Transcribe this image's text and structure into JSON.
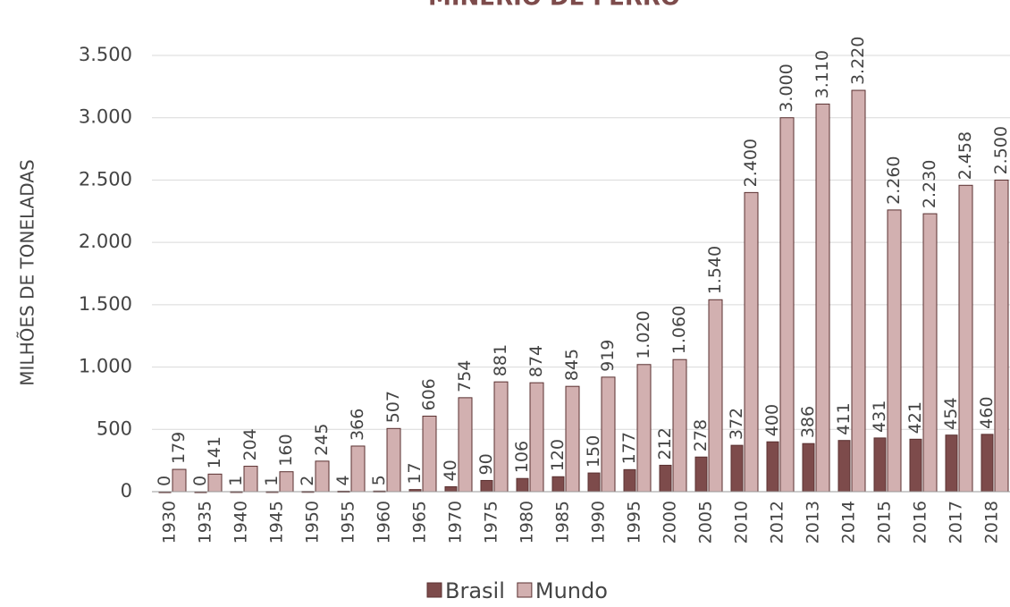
{
  "chart_data": {
    "type": "bar",
    "title": "MINÉRIO DE FERRO",
    "y_label": "MILHÕES DE TONELADAS",
    "categories": [
      "1930",
      "1935",
      "1940",
      "1945",
      "1950",
      "1955",
      "1960",
      "1965",
      "1970",
      "1975",
      "1980",
      "1985",
      "1990",
      "1995",
      "2000",
      "2005",
      "2010",
      "2012",
      "2013",
      "2014",
      "2015",
      "2016",
      "2017",
      "2018"
    ],
    "series": [
      {
        "name": "Brasil",
        "color": "#7d4b4b",
        "values": [
          0,
          0,
          1,
          1,
          2,
          4,
          5,
          17,
          40,
          90,
          106,
          120,
          150,
          177,
          212,
          278,
          372,
          400,
          386,
          411,
          431,
          421,
          454,
          460
        ]
      },
      {
        "name": "Mundo",
        "color": "#d2b0b0",
        "values": [
          179,
          141,
          204,
          160,
          245,
          366,
          507,
          606,
          754,
          881,
          874,
          845,
          919,
          1020,
          1060,
          1540,
          2400,
          3000,
          3110,
          3220,
          2260,
          2230,
          2458,
          2500
        ],
        "value_labels": [
          "179",
          "141",
          "204",
          "160",
          "245",
          "366",
          "507",
          "606",
          "754",
          "881",
          "874",
          "845",
          "919",
          "1.020",
          "1.060",
          "1.540",
          "2.400",
          "3.000",
          "3.110",
          "3.220",
          "2.260",
          "2.230",
          "2.458",
          "2.500"
        ]
      }
    ],
    "ylim": [
      0,
      3500
    ],
    "yticks": [
      0,
      500,
      {
        "value": 1000,
        "label": "1.000"
      },
      {
        "value": 1500,
        "label": "1.500"
      },
      {
        "value": 2000,
        "label": "2.000"
      },
      {
        "value": 2500,
        "label": "2.500"
      },
      {
        "value": 3000,
        "label": "3.000"
      },
      {
        "value": 3500,
        "label": "3.500"
      }
    ],
    "grid": true,
    "legend": "bottom"
  }
}
